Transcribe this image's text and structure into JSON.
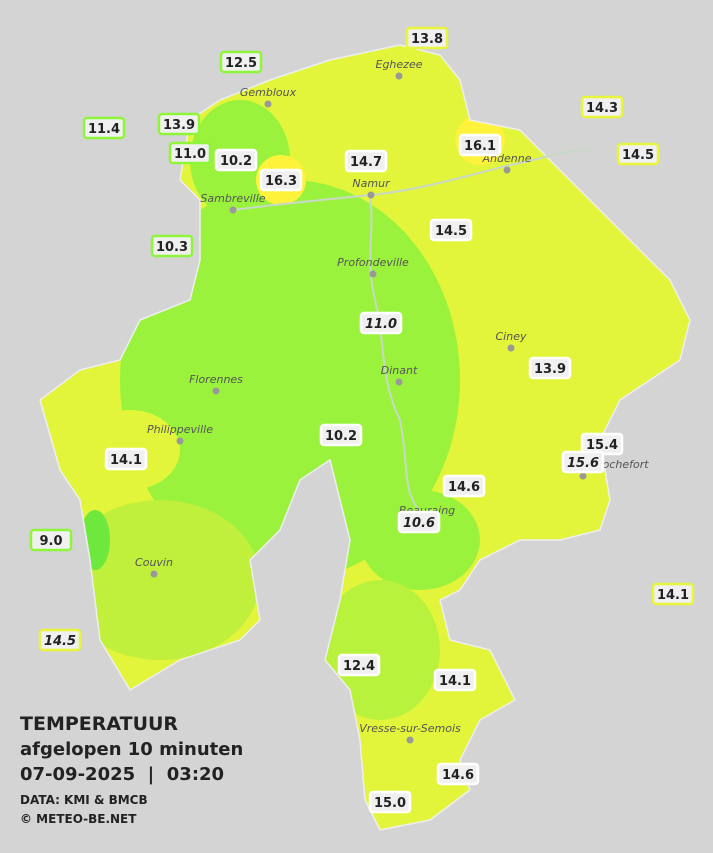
{
  "legend": {
    "title": "TEMPERATUUR",
    "subtitle": "afgelopen 10 minuten",
    "datetime": "07-09-2025  |  03:20",
    "source": "DATA: KMI & BMCB",
    "copyright": "© METEO-BE.NET"
  },
  "cities": [
    "Eghezee",
    "Gembloux",
    "Andenne",
    "Namur",
    "Sambreville",
    "Profondeville",
    "Ciney",
    "Dinant",
    "Florennes",
    "Philippeville",
    "Couvin",
    "Vresse-sur-Semois",
    "Beauraing",
    "Rochefort"
  ],
  "stations": [
    {
      "label": "13.8",
      "border": "#e8f53a"
    },
    {
      "label": "12.5",
      "border": "#8ef53a"
    },
    {
      "label": "14.3",
      "border": "#e8f53a"
    },
    {
      "label": "11.4",
      "border": "#8ef53a"
    },
    {
      "label": "13.9",
      "border": "#8ef53a"
    },
    {
      "label": "16.1",
      "border": "#ffffff"
    },
    {
      "label": "14.5",
      "border": "#e8f53a"
    },
    {
      "label": "11.0",
      "border": "#8ef53a"
    },
    {
      "label": "10.2",
      "border": "#ffffff"
    },
    {
      "label": "14.7",
      "border": "#ffffff"
    },
    {
      "label": "16.3",
      "border": "#ffffff"
    },
    {
      "label": "14.5",
      "border": "#ffffff"
    },
    {
      "label": "10.3",
      "border": "#8ef53a"
    },
    {
      "label": "11.0",
      "border": "#ffffff",
      "italic": true
    },
    {
      "label": "13.9",
      "border": "#ffffff"
    },
    {
      "label": "10.2",
      "border": "#ffffff"
    },
    {
      "label": "15.4",
      "border": "#ffffff"
    },
    {
      "label": "15.6",
      "border": "#ffffff",
      "italic": true
    },
    {
      "label": "14.1",
      "border": "#ffffff"
    },
    {
      "label": "14.6",
      "border": "#ffffff"
    },
    {
      "label": "10.6",
      "border": "#ffffff",
      "italic": true
    },
    {
      "label": "9.0",
      "border": "#8ef53a"
    },
    {
      "label": "14.1",
      "border": "#e8f53a"
    },
    {
      "label": "14.5",
      "border": "#e8f53a",
      "italic": true
    },
    {
      "label": "12.4",
      "border": "#ffffff"
    },
    {
      "label": "14.1",
      "border": "#ffffff"
    },
    {
      "label": "14.6",
      "border": "#ffffff"
    },
    {
      "label": "15.0",
      "border": "#ffffff"
    }
  ]
}
